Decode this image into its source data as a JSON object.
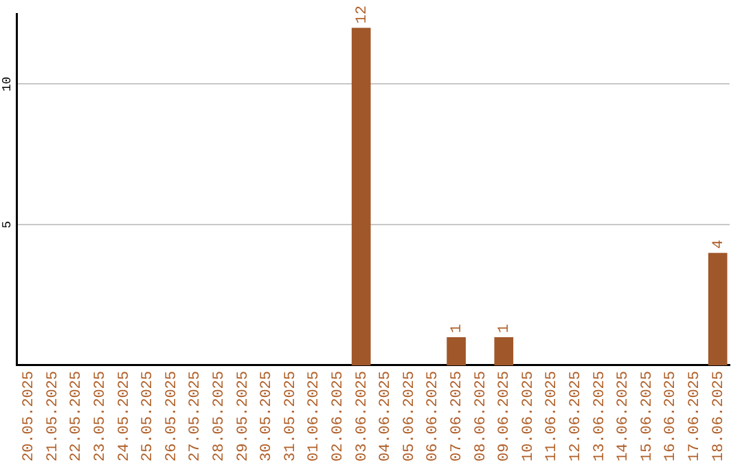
{
  "chart_data": {
    "type": "bar",
    "categories": [
      "20.05.2025",
      "21.05.2025",
      "22.05.2025",
      "23.05.2025",
      "24.05.2025",
      "25.05.2025",
      "26.05.2025",
      "27.05.2025",
      "28.05.2025",
      "29.05.2025",
      "30.05.2025",
      "31.05.2025",
      "01.06.2025",
      "02.06.2025",
      "03.06.2025",
      "04.06.2025",
      "05.06.2025",
      "06.06.2025",
      "07.06.2025",
      "08.06.2025",
      "09.06.2025",
      "10.06.2025",
      "11.06.2025",
      "12.06.2025",
      "13.06.2025",
      "14.06.2025",
      "15.06.2025",
      "16.06.2025",
      "17.06.2025",
      "18.06.2025"
    ],
    "values": [
      0,
      0,
      0,
      0,
      0,
      0,
      0,
      0,
      0,
      0,
      0,
      0,
      0,
      0,
      12,
      0,
      0,
      0,
      1,
      0,
      1,
      0,
      0,
      0,
      0,
      0,
      0,
      0,
      0,
      4
    ],
    "value_labels": [
      null,
      null,
      null,
      null,
      null,
      null,
      null,
      null,
      null,
      null,
      null,
      null,
      null,
      null,
      "12",
      null,
      null,
      null,
      "1",
      null,
      "1",
      null,
      null,
      null,
      null,
      null,
      null,
      null,
      null,
      "4"
    ],
    "color": "#a0572a",
    "ylim": [
      0,
      12.5
    ],
    "yticks": [
      5,
      10
    ],
    "grid": "y",
    "legend": false
  }
}
